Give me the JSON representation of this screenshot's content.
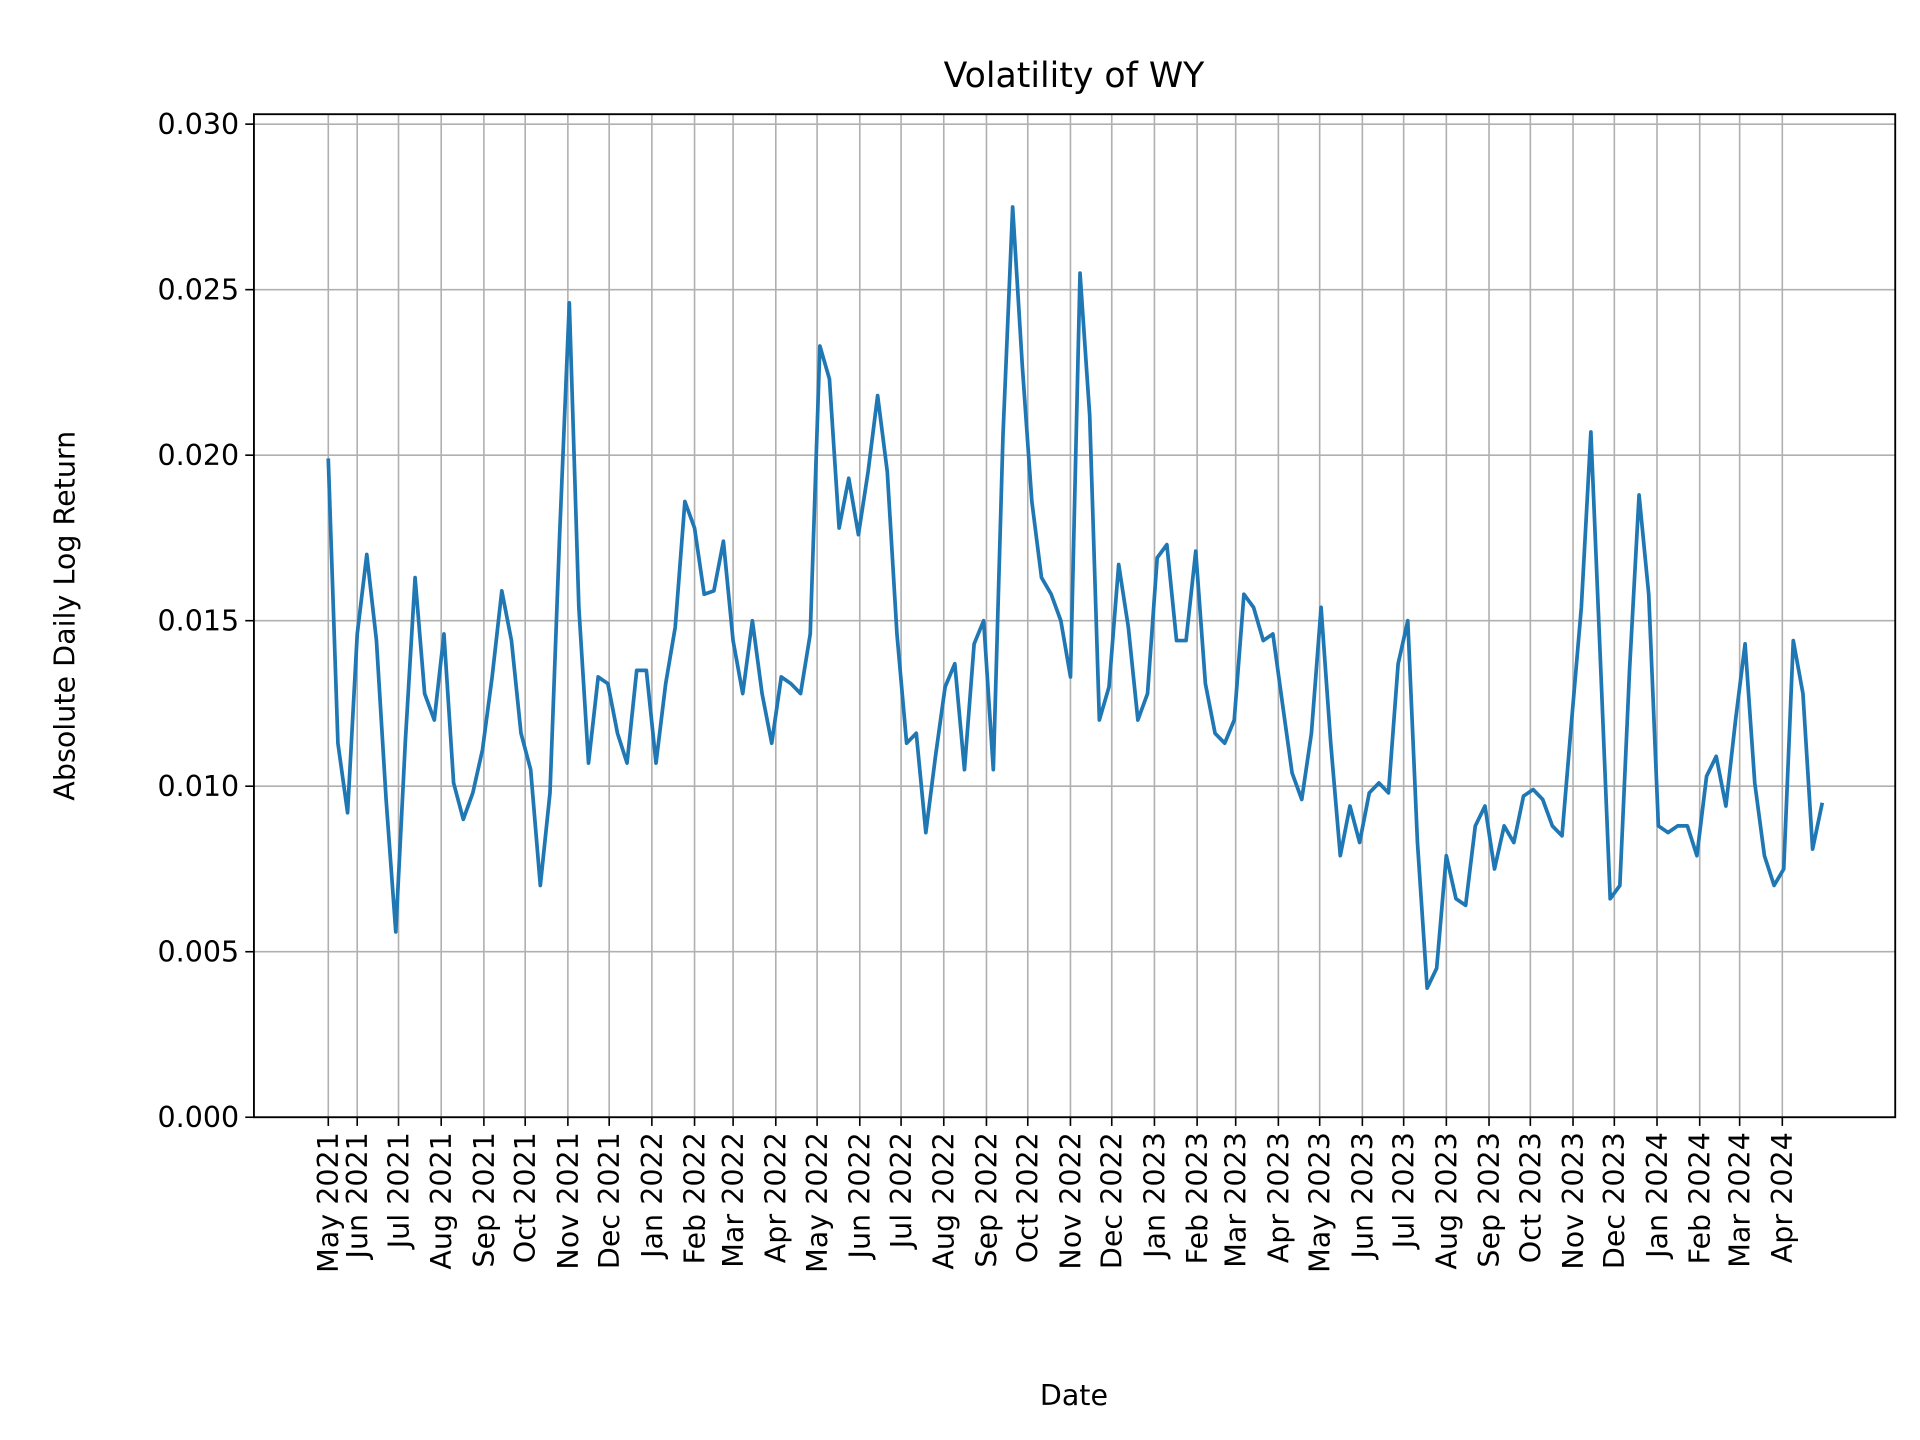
{
  "chart_data": {
    "type": "line",
    "title": "Volatility of WY",
    "xlabel": "Date",
    "ylabel": "Absolute Daily Log Return",
    "ylim": [
      0,
      0.03
    ],
    "xlim": [
      "2021-03-18",
      "2024-06-22"
    ],
    "grid": true,
    "line_color": "#1f77b4",
    "yticks": [
      "0.000",
      "0.005",
      "0.010",
      "0.015",
      "0.020",
      "0.025",
      "0.030"
    ],
    "xticks": [
      {
        "date": "2021-05-11",
        "label": "May 2021"
      },
      {
        "date": "2021-06-01",
        "label": "Jun 2021"
      },
      {
        "date": "2021-07-01",
        "label": "Jul 2021"
      },
      {
        "date": "2021-08-01",
        "label": "Aug 2021"
      },
      {
        "date": "2021-09-01",
        "label": "Sep 2021"
      },
      {
        "date": "2021-10-01",
        "label": "Oct 2021"
      },
      {
        "date": "2021-11-01",
        "label": "Nov 2021"
      },
      {
        "date": "2021-12-01",
        "label": "Dec 2021"
      },
      {
        "date": "2022-01-01",
        "label": "Jan 2022"
      },
      {
        "date": "2022-02-01",
        "label": "Feb 2022"
      },
      {
        "date": "2022-03-01",
        "label": "Mar 2022"
      },
      {
        "date": "2022-04-01",
        "label": "Apr 2022"
      },
      {
        "date": "2022-05-01",
        "label": "May 2022"
      },
      {
        "date": "2022-06-01",
        "label": "Jun 2022"
      },
      {
        "date": "2022-07-01",
        "label": "Jul 2022"
      },
      {
        "date": "2022-08-01",
        "label": "Aug 2022"
      },
      {
        "date": "2022-09-01",
        "label": "Sep 2022"
      },
      {
        "date": "2022-10-01",
        "label": "Oct 2022"
      },
      {
        "date": "2022-11-01",
        "label": "Nov 2022"
      },
      {
        "date": "2022-12-01",
        "label": "Dec 2022"
      },
      {
        "date": "2023-01-01",
        "label": "Jan 2023"
      },
      {
        "date": "2023-02-01",
        "label": "Feb 2023"
      },
      {
        "date": "2023-03-01",
        "label": "Mar 2023"
      },
      {
        "date": "2023-04-01",
        "label": "Apr 2023"
      },
      {
        "date": "2023-05-01",
        "label": "May 2023"
      },
      {
        "date": "2023-06-01",
        "label": "Jun 2023"
      },
      {
        "date": "2023-07-01",
        "label": "Jul 2023"
      },
      {
        "date": "2023-08-01",
        "label": "Aug 2023"
      },
      {
        "date": "2023-09-01",
        "label": "Sep 2023"
      },
      {
        "date": "2023-10-01",
        "label": "Oct 2023"
      },
      {
        "date": "2023-11-01",
        "label": "Nov 2023"
      },
      {
        "date": "2023-12-01",
        "label": "Dec 2023"
      },
      {
        "date": "2024-01-01",
        "label": "Jan 2024"
      },
      {
        "date": "2024-02-01",
        "label": "Feb 2024"
      },
      {
        "date": "2024-03-01",
        "label": "Mar 2024"
      },
      {
        "date": "2024-04-01",
        "label": "Apr 2024"
      }
    ],
    "dates": [
      "2021-05-11",
      "2021-05-18",
      "2021-05-25",
      "2021-06-01",
      "2021-06-08",
      "2021-06-15",
      "2021-06-22",
      "2021-06-29",
      "2021-07-06",
      "2021-07-13",
      "2021-07-20",
      "2021-07-27",
      "2021-08-03",
      "2021-08-10",
      "2021-08-17",
      "2021-08-24",
      "2021-08-31",
      "2021-09-07",
      "2021-09-14",
      "2021-09-21",
      "2021-09-28",
      "2021-10-05",
      "2021-10-12",
      "2021-10-19",
      "2021-10-26",
      "2021-11-02",
      "2021-11-09",
      "2021-11-16",
      "2021-11-23",
      "2021-11-30",
      "2021-12-07",
      "2021-12-14",
      "2021-12-21",
      "2021-12-28",
      "2022-01-04",
      "2022-01-11",
      "2022-01-18",
      "2022-01-25",
      "2022-02-01",
      "2022-02-08",
      "2022-02-15",
      "2022-02-22",
      "2022-03-01",
      "2022-03-08",
      "2022-03-15",
      "2022-03-22",
      "2022-03-29",
      "2022-04-05",
      "2022-04-12",
      "2022-04-19",
      "2022-04-26",
      "2022-05-03",
      "2022-05-10",
      "2022-05-17",
      "2022-05-24",
      "2022-05-31",
      "2022-06-07",
      "2022-06-14",
      "2022-06-21",
      "2022-06-28",
      "2022-07-05",
      "2022-07-12",
      "2022-07-19",
      "2022-07-26",
      "2022-08-02",
      "2022-08-09",
      "2022-08-16",
      "2022-08-23",
      "2022-08-30",
      "2022-09-06",
      "2022-09-13",
      "2022-09-20",
      "2022-09-27",
      "2022-10-04",
      "2022-10-11",
      "2022-10-18",
      "2022-10-25",
      "2022-11-01",
      "2022-11-08",
      "2022-11-15",
      "2022-11-22",
      "2022-11-29",
      "2022-12-06",
      "2022-12-13",
      "2022-12-20",
      "2022-12-27",
      "2023-01-03",
      "2023-01-10",
      "2023-01-17",
      "2023-01-24",
      "2023-01-31",
      "2023-02-07",
      "2023-02-14",
      "2023-02-21",
      "2023-02-28",
      "2023-03-07",
      "2023-03-14",
      "2023-03-21",
      "2023-03-28",
      "2023-04-04",
      "2023-04-11",
      "2023-04-18",
      "2023-04-25",
      "2023-05-02",
      "2023-05-09",
      "2023-05-16",
      "2023-05-23",
      "2023-05-30",
      "2023-06-06",
      "2023-06-13",
      "2023-06-20",
      "2023-06-27",
      "2023-07-04",
      "2023-07-11",
      "2023-07-18",
      "2023-07-25",
      "2023-08-01",
      "2023-08-08",
      "2023-08-15",
      "2023-08-22",
      "2023-08-29",
      "2023-09-05",
      "2023-09-12",
      "2023-09-19",
      "2023-09-26",
      "2023-10-03",
      "2023-10-10",
      "2023-10-17",
      "2023-10-24",
      "2023-10-31",
      "2023-11-07",
      "2023-11-14",
      "2023-11-21",
      "2023-11-28",
      "2023-12-05",
      "2023-12-12",
      "2023-12-19",
      "2023-12-26",
      "2024-01-02",
      "2024-01-09",
      "2024-01-16",
      "2024-01-23",
      "2024-01-30",
      "2024-02-06",
      "2024-02-13",
      "2024-02-20",
      "2024-02-27",
      "2024-03-05",
      "2024-03-12",
      "2024-03-19",
      "2024-03-26",
      "2024-04-02",
      "2024-04-09",
      "2024-04-16",
      "2024-04-23",
      "2024-04-30"
    ],
    "values": [
      0.0199,
      0.0113,
      0.0092,
      0.0146,
      0.017,
      0.0144,
      0.0096,
      0.0056,
      0.0114,
      0.0163,
      0.0128,
      0.012,
      0.0146,
      0.0101,
      0.009,
      0.0098,
      0.0111,
      0.0133,
      0.0159,
      0.0144,
      0.0116,
      0.0105,
      0.007,
      0.0098,
      0.0176,
      0.0246,
      0.0154,
      0.0107,
      0.0133,
      0.0131,
      0.0116,
      0.0107,
      0.0135,
      0.0135,
      0.0107,
      0.0131,
      0.0148,
      0.0186,
      0.0178,
      0.0158,
      0.0159,
      0.0174,
      0.0144,
      0.0128,
      0.015,
      0.0128,
      0.0113,
      0.0133,
      0.0131,
      0.0128,
      0.0146,
      0.0233,
      0.0223,
      0.0178,
      0.0193,
      0.0176,
      0.0195,
      0.0218,
      0.0195,
      0.0146,
      0.0113,
      0.0116,
      0.0086,
      0.0109,
      0.013,
      0.0137,
      0.0105,
      0.0143,
      0.015,
      0.0105,
      0.0206,
      0.0275,
      0.0227,
      0.0186,
      0.0163,
      0.0158,
      0.015,
      0.0133,
      0.0255,
      0.0212,
      0.012,
      0.013,
      0.0167,
      0.0148,
      0.012,
      0.0128,
      0.0169,
      0.0173,
      0.0144,
      0.0144,
      0.0171,
      0.0131,
      0.0116,
      0.0113,
      0.012,
      0.0158,
      0.0154,
      0.0144,
      0.0146,
      0.0125,
      0.0104,
      0.0096,
      0.0116,
      0.0154,
      0.0113,
      0.0079,
      0.0094,
      0.0083,
      0.0098,
      0.0101,
      0.0098,
      0.0137,
      0.015,
      0.0083,
      0.0039,
      0.0045,
      0.0079,
      0.0066,
      0.0064,
      0.0088,
      0.0094,
      0.0075,
      0.0088,
      0.0083,
      0.0097,
      0.0099,
      0.0096,
      0.0088,
      0.0085,
      0.012,
      0.0154,
      0.0207,
      0.0137,
      0.0066,
      0.007,
      0.0135,
      0.0188,
      0.0158,
      0.0088,
      0.0086,
      0.0088,
      0.0088,
      0.0079,
      0.0103,
      0.0109,
      0.0094,
      0.012,
      0.0143,
      0.0101,
      0.0079,
      0.007,
      0.0075,
      0.0144,
      0.0128,
      0.0081,
      0.0095
    ]
  }
}
